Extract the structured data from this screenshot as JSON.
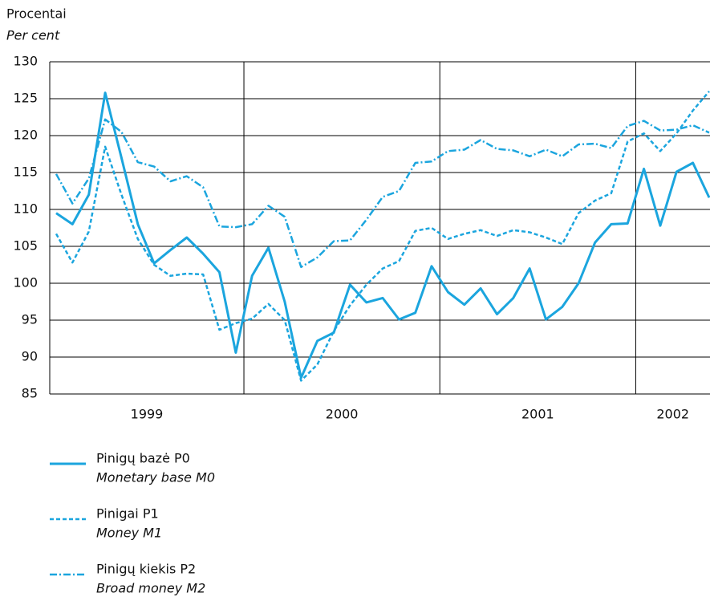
{
  "chart_data": {
    "type": "line",
    "y_label": "Procentai",
    "y_label_en": "Per cent",
    "categories": [
      null,
      null,
      null,
      null,
      null,
      null,
      null,
      null,
      null,
      null,
      null,
      null,
      null,
      null,
      null,
      null,
      null,
      null,
      null,
      null,
      null,
      null,
      null,
      null,
      null,
      null,
      null,
      null,
      null,
      null,
      null,
      null,
      null,
      null,
      null,
      null,
      null,
      null,
      null,
      null,
      null
    ],
    "year_labels": [
      "1999",
      "2000",
      "2001",
      "2002"
    ],
    "ylim": [
      85,
      130
    ],
    "yticks": [
      85,
      90,
      95,
      100,
      105,
      110,
      115,
      120,
      125,
      130
    ],
    "grid": true,
    "series": [
      {
        "name": "Pinigų bazė P0",
        "name_en": "Monetary base M0",
        "color": "#1ba5de",
        "dash": "solid",
        "values": [
          109.5,
          108,
          112,
          125.8,
          117,
          108,
          102.7,
          104.5,
          106.2,
          104,
          101.5,
          90.6,
          101,
          104.8,
          97.5,
          87.2,
          92.2,
          93.3,
          99.8,
          97.4,
          98,
          95.1,
          96,
          102.3,
          98.8,
          97.1,
          99.3,
          95.8,
          98,
          102,
          95.1,
          96.8,
          100,
          105.5,
          108,
          108.1,
          115.5,
          107.8,
          115.1,
          116.3,
          111.6
        ]
      },
      {
        "name": "Pinigai P1",
        "name_en": "Money M1",
        "color": "#1ba5de",
        "dash": "dashed",
        "values": [
          106.7,
          102.8,
          107,
          118.5,
          112,
          106,
          102.5,
          101,
          101.3,
          101.2,
          93.7,
          94.6,
          95.2,
          97.2,
          95,
          86.8,
          89,
          93.5,
          97,
          99.8,
          102,
          103,
          107.1,
          107.5,
          106,
          106.7,
          107.2,
          106.4,
          107.2,
          106.9,
          106.2,
          105.3,
          109.5,
          111.2,
          112.2,
          119.2,
          120.3,
          117.9,
          120.3,
          123.4,
          126
        ]
      },
      {
        "name": "Pinigų kiekis P2",
        "name_en": "Broad money M2",
        "color": "#1ba5de",
        "dash": "dashdot",
        "values": [
          114.8,
          110.8,
          114.2,
          122.2,
          120.5,
          116.4,
          115.8,
          113.8,
          114.5,
          113,
          107.7,
          107.6,
          108,
          110.5,
          109,
          102.2,
          103.5,
          105.7,
          105.8,
          108.6,
          111.7,
          112.5,
          116.3,
          116.5,
          117.9,
          118.1,
          119.4,
          118.2,
          118,
          117.2,
          118.1,
          117.2,
          118.8,
          118.9,
          118.3,
          121.3,
          122,
          120.7,
          120.8,
          121.4,
          120.4
        ]
      }
    ]
  }
}
